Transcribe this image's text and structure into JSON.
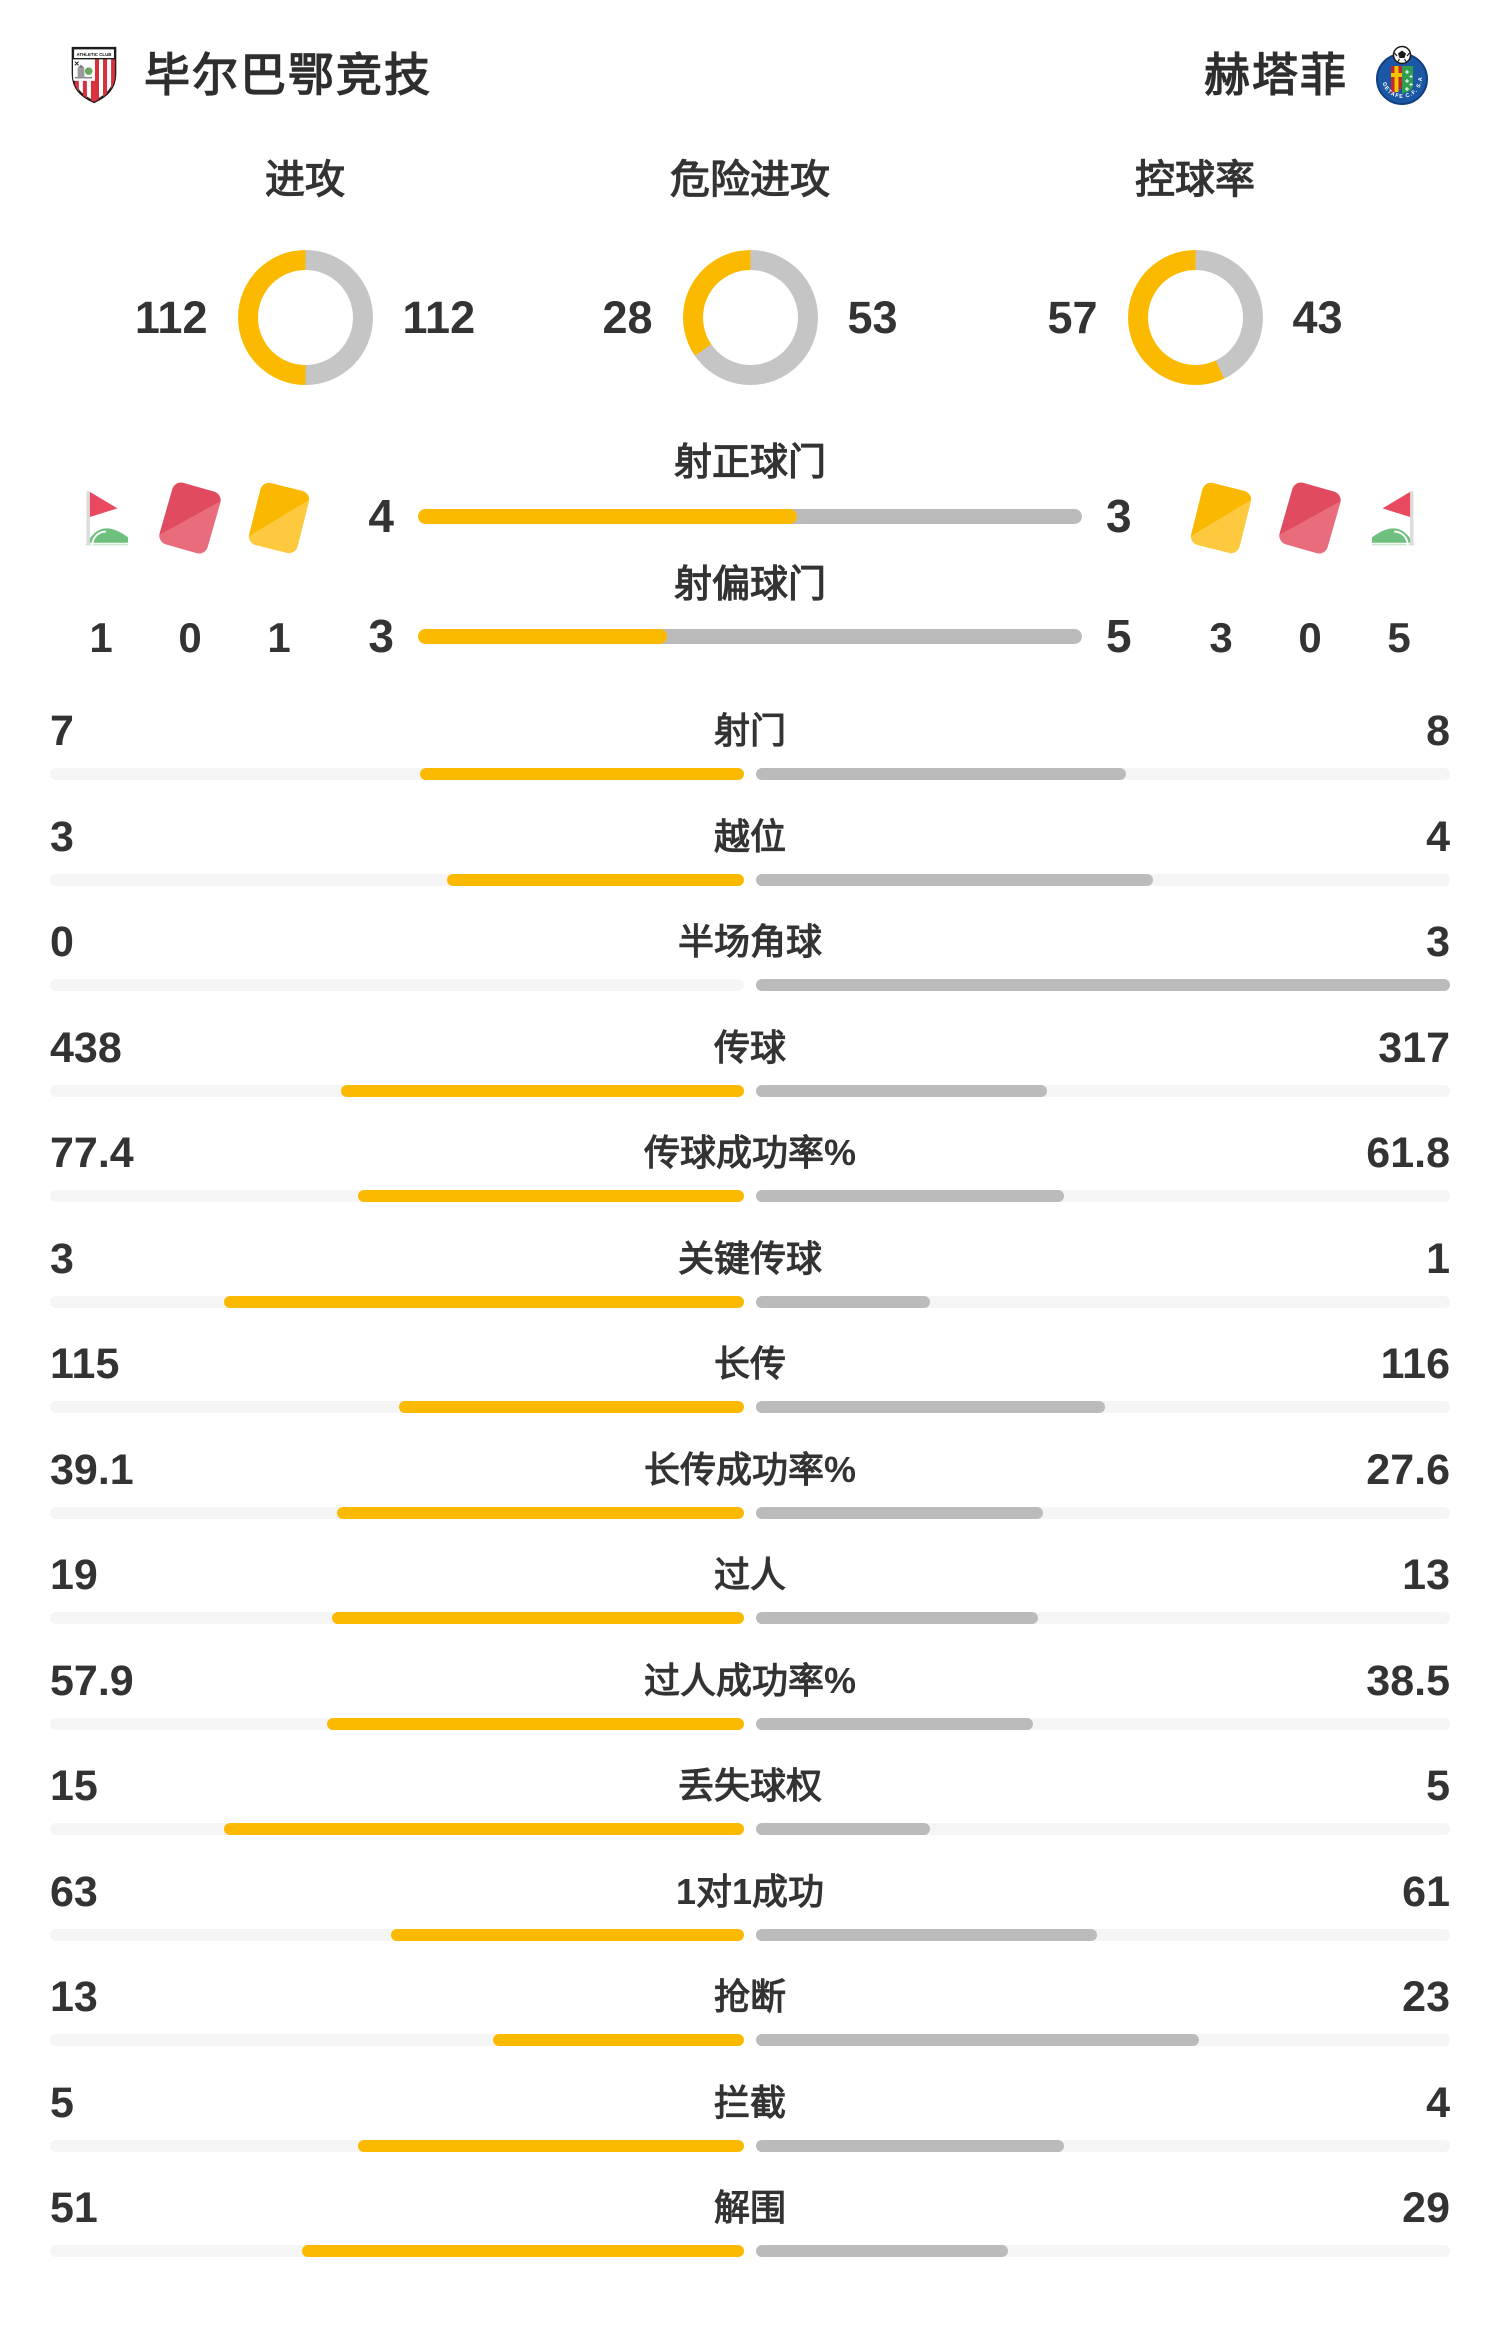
{
  "teams": {
    "home": {
      "name": "毕尔巴鄂竞技"
    },
    "away": {
      "name": "赫塔菲"
    }
  },
  "colors": {
    "home_accent": "#FBBA00",
    "away_bar": "#BBBBBB",
    "donut_away": "#C5C5C5",
    "track": "#F5F5F5",
    "text": "#333333",
    "red_card": "#E04B60",
    "yellow_card": "#FBB800",
    "flag_red": "#E8495F",
    "flag_green": "#6FBF7E"
  },
  "donuts": [
    {
      "label": "进攻",
      "home": 112,
      "away": 112
    },
    {
      "label": "危险进攻",
      "home": 28,
      "away": 53
    },
    {
      "label": "控球率",
      "home": 57,
      "away": 43
    }
  ],
  "shot_bars": [
    {
      "label": "射正球门",
      "home": 4,
      "away": 3
    },
    {
      "label": "射偏球门",
      "home": 3,
      "away": 5
    }
  ],
  "discipline": {
    "home": [
      {
        "icon": "corner-flag-icon",
        "count": 1
      },
      {
        "icon": "red-card-icon",
        "count": 0
      },
      {
        "icon": "yellow-card-icon",
        "count": 1
      }
    ],
    "away": [
      {
        "icon": "yellow-card-icon",
        "count": 3
      },
      {
        "icon": "red-card-icon",
        "count": 0
      },
      {
        "icon": "corner-flag-icon",
        "count": 5
      }
    ]
  },
  "stats": [
    {
      "label": "射门",
      "home": "7",
      "away": "8"
    },
    {
      "label": "越位",
      "home": "3",
      "away": "4"
    },
    {
      "label": "半场角球",
      "home": "0",
      "away": "3"
    },
    {
      "label": "传球",
      "home": "438",
      "away": "317"
    },
    {
      "label": "传球成功率%",
      "home": "77.4",
      "away": "61.8"
    },
    {
      "label": "关键传球",
      "home": "3",
      "away": "1"
    },
    {
      "label": "长传",
      "home": "115",
      "away": "116"
    },
    {
      "label": "长传成功率%",
      "home": "39.1",
      "away": "27.6"
    },
    {
      "label": "过人",
      "home": "19",
      "away": "13"
    },
    {
      "label": "过人成功率%",
      "home": "57.9",
      "away": "38.5"
    },
    {
      "label": "丢失球权",
      "home": "15",
      "away": "5"
    },
    {
      "label": "1对1成功",
      "home": "63",
      "away": "61"
    },
    {
      "label": "抢断",
      "home": "13",
      "away": "23"
    },
    {
      "label": "拦截",
      "home": "5",
      "away": "4"
    },
    {
      "label": "解围",
      "home": "51",
      "away": "29"
    }
  ],
  "chart_data": [
    {
      "type": "pie",
      "title": "进攻",
      "series": [
        {
          "name": "毕尔巴鄂竞技",
          "value": 112
        },
        {
          "name": "赫塔菲",
          "value": 112
        }
      ],
      "colors": [
        "#FBBA00",
        "#C5C5C5"
      ]
    },
    {
      "type": "pie",
      "title": "危险进攻",
      "series": [
        {
          "name": "毕尔巴鄂竞技",
          "value": 28
        },
        {
          "name": "赫塔菲",
          "value": 53
        }
      ],
      "colors": [
        "#FBBA00",
        "#C5C5C5"
      ]
    },
    {
      "type": "pie",
      "title": "控球率",
      "series": [
        {
          "name": "毕尔巴鄂竞技",
          "value": 57
        },
        {
          "name": "赫塔菲",
          "value": 43
        }
      ],
      "colors": [
        "#FBBA00",
        "#C5C5C5"
      ]
    },
    {
      "type": "bar",
      "title": "射正球门",
      "categories": [
        "毕尔巴鄂竞技",
        "赫塔菲"
      ],
      "values": [
        4,
        3
      ]
    },
    {
      "type": "bar",
      "title": "射偏球门",
      "categories": [
        "毕尔巴鄂竞技",
        "赫塔菲"
      ],
      "values": [
        3,
        5
      ]
    },
    {
      "type": "bar",
      "title": "角球/红牌/黄牌",
      "categories": [
        "角球",
        "红牌",
        "黄牌"
      ],
      "series": [
        {
          "name": "毕尔巴鄂竞技",
          "values": [
            1,
            0,
            1
          ]
        },
        {
          "name": "赫塔菲",
          "values": [
            5,
            0,
            3
          ]
        }
      ]
    },
    {
      "type": "bar",
      "title": "比赛数据",
      "categories": [
        "射门",
        "越位",
        "半场角球",
        "传球",
        "传球成功率%",
        "关键传球",
        "长传",
        "长传成功率%",
        "过人",
        "过人成功率%",
        "丢失球权",
        "1对1成功",
        "抢断",
        "拦截",
        "解围"
      ],
      "series": [
        {
          "name": "毕尔巴鄂竞技",
          "values": [
            7,
            3,
            0,
            438,
            77.4,
            3,
            115,
            39.1,
            19,
            57.9,
            15,
            63,
            13,
            5,
            51
          ]
        },
        {
          "name": "赫塔菲",
          "values": [
            8,
            4,
            3,
            317,
            61.8,
            1,
            116,
            27.6,
            13,
            38.5,
            5,
            61,
            23,
            4,
            29
          ]
        }
      ],
      "legend_position": "none",
      "grid": false
    }
  ]
}
